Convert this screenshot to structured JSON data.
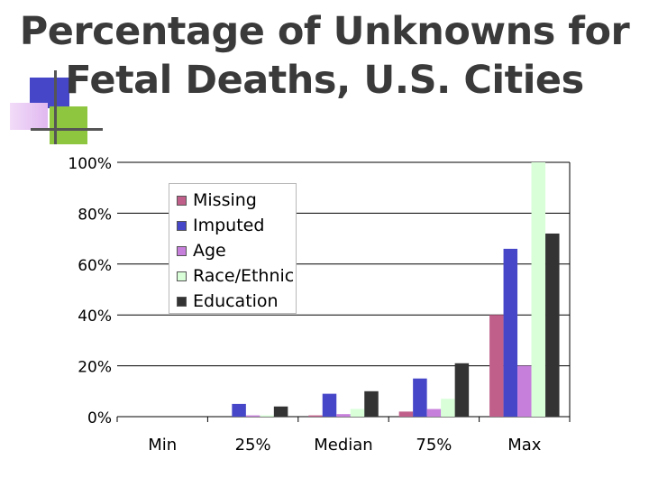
{
  "title_line1": "Percentage of Unknowns for",
  "title_line2": "Fetal Deaths, U.S. Cities",
  "colors": {
    "title": "#3a3a3a",
    "deco_blue": "#4646c8",
    "deco_green": "#8ec63f",
    "deco_lilac": "#e0b8f0"
  },
  "chart_data": {
    "type": "bar",
    "title": "",
    "xlabel": "",
    "ylabel": "",
    "ylim": [
      0,
      100
    ],
    "yticks": [
      "0%",
      "20%",
      "40%",
      "60%",
      "80%",
      "100%"
    ],
    "grid": "horizontal",
    "legend_position": "inside-top-left",
    "categories": [
      "Min",
      "25%",
      "Median",
      "75%",
      "Max"
    ],
    "series": [
      {
        "name": "Missing",
        "color": "#c0608a",
        "values": [
          0,
          0,
          0.5,
          2,
          40
        ]
      },
      {
        "name": "Imputed",
        "color": "#4646c8",
        "values": [
          0,
          5,
          9,
          15,
          66
        ]
      },
      {
        "name": "Age",
        "color": "#c77fdc",
        "values": [
          0,
          0.5,
          1,
          3,
          20
        ]
      },
      {
        "name": "Race/Ethnic",
        "color": "#d8ffd8",
        "values": [
          0,
          0.5,
          3,
          7,
          100
        ]
      },
      {
        "name": "Education",
        "color": "#333333",
        "values": [
          0,
          4,
          10,
          21,
          72
        ]
      }
    ]
  }
}
